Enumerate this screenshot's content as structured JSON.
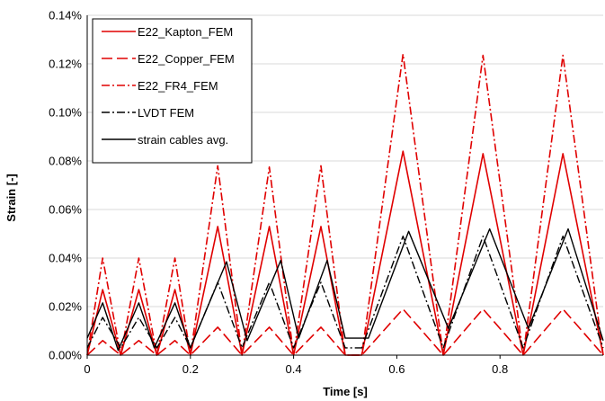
{
  "chart_data": {
    "type": "line",
    "xlabel": "Time [s]",
    "ylabel": "Strain [-]",
    "xlim": [
      0,
      1.0
    ],
    "ylim": [
      0,
      0.14
    ],
    "grid": "horizontal",
    "legend_placement": "top-left",
    "x_ticks": [
      0,
      0.2,
      0.4,
      0.6,
      0.8
    ],
    "x_tick_labels": [
      "0",
      "0.2",
      "0.4",
      "0.6",
      "0.8"
    ],
    "y_ticks": [
      0,
      0.02,
      0.04,
      0.06,
      0.08,
      0.1,
      0.12,
      0.14
    ],
    "y_tick_labels": [
      "0.00%",
      "0.02%",
      "0.04%",
      "0.06%",
      "0.08%",
      "0.10%",
      "0.12%",
      "0.14%"
    ],
    "series": [
      {
        "name": "E22_Kapton_FEM",
        "color": "#e00000",
        "dash": "solid",
        "x": [
          0,
          0.03,
          0.065,
          0.1,
          0.135,
          0.17,
          0.2,
          0.253,
          0.3,
          0.353,
          0.4,
          0.453,
          0.5,
          0.532,
          0.612,
          0.69,
          0.767,
          0.845,
          0.922,
          1.0
        ],
        "y": [
          0.0,
          0.027,
          0.0,
          0.027,
          0.0,
          0.027,
          0.0,
          0.053,
          0.0,
          0.053,
          0.0,
          0.053,
          0.0,
          0.0,
          0.084,
          0.0,
          0.083,
          0.0,
          0.083,
          0.0
        ]
      },
      {
        "name": "E22_Copper_FEM",
        "color": "#e00000",
        "dash": "long-dash",
        "x": [
          0,
          0.03,
          0.065,
          0.1,
          0.135,
          0.17,
          0.2,
          0.253,
          0.3,
          0.353,
          0.4,
          0.453,
          0.5,
          0.532,
          0.612,
          0.69,
          0.767,
          0.845,
          0.922,
          1.0
        ],
        "y": [
          0.0,
          0.006,
          0.0,
          0.006,
          0.0,
          0.006,
          0.0,
          0.0115,
          0.0,
          0.0115,
          0.0,
          0.0115,
          0.0,
          0.0,
          0.019,
          0.0,
          0.019,
          0.0,
          0.019,
          0.0
        ]
      },
      {
        "name": "E22_FR4_FEM",
        "color": "#e00000",
        "dash": "dash-dot",
        "x": [
          0,
          0.03,
          0.065,
          0.1,
          0.135,
          0.17,
          0.2,
          0.253,
          0.3,
          0.353,
          0.4,
          0.453,
          0.5,
          0.532,
          0.612,
          0.69,
          0.767,
          0.845,
          0.922,
          1.0
        ],
        "y": [
          0.0,
          0.04,
          0.0,
          0.04,
          0.0,
          0.04,
          0.0,
          0.078,
          0.0,
          0.0775,
          0.0,
          0.078,
          0.0,
          0.0,
          0.124,
          0.0,
          0.1235,
          0.0,
          0.1235,
          0.0
        ]
      },
      {
        "name": "LVDT FEM",
        "color": "#000000",
        "dash": "dash-dot",
        "x": [
          0,
          0.03,
          0.065,
          0.1,
          0.135,
          0.17,
          0.2,
          0.253,
          0.3,
          0.353,
          0.4,
          0.453,
          0.5,
          0.532,
          0.612,
          0.69,
          0.767,
          0.845,
          0.922,
          1.0
        ],
        "y": [
          0.003,
          0.0155,
          0.003,
          0.0155,
          0.003,
          0.0155,
          0.003,
          0.03,
          0.003,
          0.03,
          0.003,
          0.03,
          0.003,
          0.003,
          0.049,
          0.003,
          0.049,
          0.003,
          0.049,
          0.003
        ]
      },
      {
        "name": "strain cables avg.",
        "color": "#000000",
        "dash": "solid",
        "x": [
          0,
          0.03,
          0.06,
          0.1,
          0.13,
          0.17,
          0.2,
          0.27,
          0.31,
          0.375,
          0.41,
          0.465,
          0.5,
          0.545,
          0.623,
          0.7,
          0.78,
          0.855,
          0.932,
          1.0
        ],
        "y": [
          0.007,
          0.0215,
          0.002,
          0.0215,
          0.003,
          0.0215,
          0.003,
          0.0385,
          0.006,
          0.039,
          0.007,
          0.039,
          0.007,
          0.007,
          0.051,
          0.011,
          0.052,
          0.011,
          0.052,
          0.006
        ]
      }
    ]
  }
}
